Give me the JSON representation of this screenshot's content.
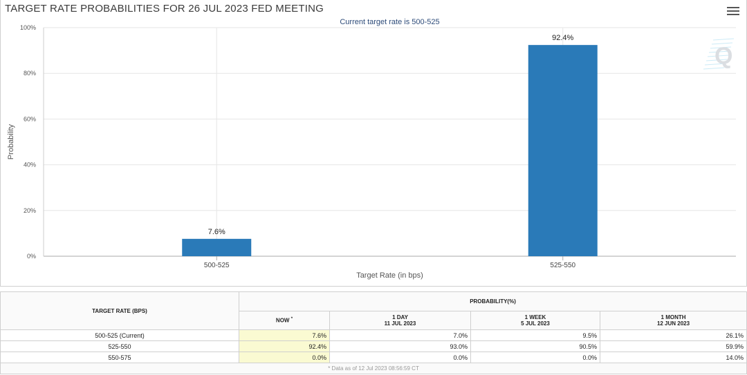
{
  "chart_title": "TARGET RATE PROBABILITIES FOR 26 JUL 2023 FED MEETING",
  "colors": {
    "bar": "#2a7ab8",
    "now_column": "#fafad2",
    "subtitle": "#2d4b79"
  },
  "icons": {
    "menu": "hamburger-menu-icon",
    "watermark": "q-logo-icon"
  },
  "chart_data": {
    "type": "bar",
    "subtitle": "Current target rate is 500-525",
    "categories": [
      "500-525",
      "525-550"
    ],
    "values": [
      7.6,
      92.4
    ],
    "data_labels": [
      "7.6%",
      "92.4%"
    ],
    "xlabel": "Target Rate (in bps)",
    "ylabel": "Probability",
    "ylim": [
      0,
      100
    ],
    "y_ticks": [
      0,
      20,
      40,
      60,
      80,
      100
    ],
    "y_tick_labels": [
      "0%",
      "20%",
      "40%",
      "60%",
      "80%",
      "100%"
    ],
    "grid": true
  },
  "table": {
    "col_target": "TARGET RATE (BPS)",
    "col_prob": "PROBABILITY(%)",
    "col_now": "NOW",
    "now_marker": "*",
    "col_day": "1 DAY",
    "col_day_date": "11 JUL 2023",
    "col_week": "1 WEEK",
    "col_week_date": "5 JUL 2023",
    "col_month": "1 MONTH",
    "col_month_date": "12 JUN 2023",
    "rows": [
      {
        "target": "500-525 (Current)",
        "now": "7.6%",
        "day": "7.0%",
        "week": "9.5%",
        "month": "26.1%"
      },
      {
        "target": "525-550",
        "now": "92.4%",
        "day": "93.0%",
        "week": "90.5%",
        "month": "59.9%"
      },
      {
        "target": "550-575",
        "now": "0.0%",
        "day": "0.0%",
        "week": "0.0%",
        "month": "14.0%"
      }
    ],
    "footnote": "* Data as of 12 Jul 2023 08:56:59 CT"
  }
}
